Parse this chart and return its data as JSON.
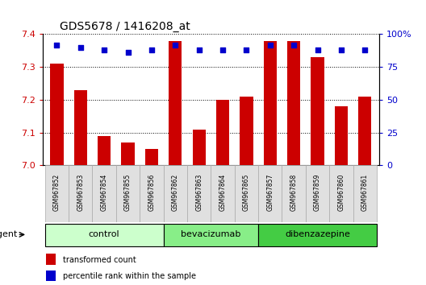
{
  "title": "GDS5678 / 1416208_at",
  "samples": [
    "GSM967852",
    "GSM967853",
    "GSM967854",
    "GSM967855",
    "GSM967856",
    "GSM967862",
    "GSM967863",
    "GSM967864",
    "GSM967865",
    "GSM967857",
    "GSM967858",
    "GSM967859",
    "GSM967860",
    "GSM967861"
  ],
  "transformed_counts": [
    7.31,
    7.23,
    7.09,
    7.07,
    7.05,
    7.38,
    7.11,
    7.2,
    7.21,
    7.38,
    7.38,
    7.33,
    7.18,
    7.21
  ],
  "percentile_ranks": [
    92,
    90,
    88,
    86,
    88,
    92,
    88,
    88,
    88,
    92,
    92,
    88,
    88,
    88
  ],
  "ylim_left": [
    7.0,
    7.4
  ],
  "ylim_right": [
    0,
    100
  ],
  "yticks_left": [
    7.0,
    7.1,
    7.2,
    7.3,
    7.4
  ],
  "yticks_right": [
    0,
    25,
    50,
    75,
    100
  ],
  "ytick_labels_right": [
    "0",
    "25",
    "50",
    "75",
    "100%"
  ],
  "bar_color": "#cc0000",
  "dot_color": "#0000cc",
  "groups": [
    {
      "label": "control",
      "start": 0,
      "end": 5,
      "color": "#ccffcc"
    },
    {
      "label": "bevacizumab",
      "start": 5,
      "end": 9,
      "color": "#88ee88"
    },
    {
      "label": "dibenzazepine",
      "start": 9,
      "end": 14,
      "color": "#44cc44"
    }
  ],
  "agent_label": "agent",
  "legend_bar_label": "transformed count",
  "legend_dot_label": "percentile rank within the sample",
  "background_color": "#ffffff"
}
